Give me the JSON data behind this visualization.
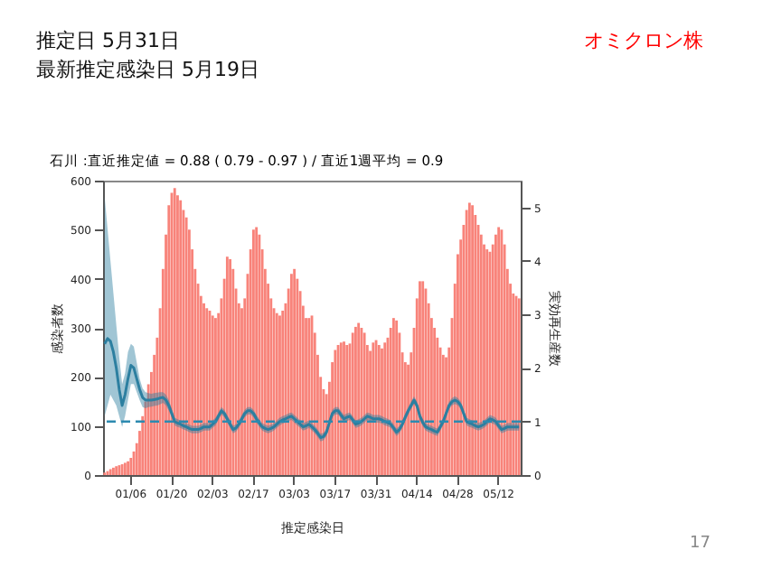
{
  "chart_data": {
    "type": "bar",
    "title": "石川 :直近推定値 = 0.88 ( 0.79 - 0.97 ) / 直近1週平均 = 0.9",
    "annotations": [
      "推定日  5月31日",
      "最新推定感染日  5月19日",
      "オミクロン株",
      "17"
    ],
    "xlabel": "推定感染日",
    "ylabel": "感染者数",
    "y2label": "実効再生産数",
    "categories": [
      null,
      null,
      null,
      null,
      null,
      null,
      null,
      null,
      null,
      "01/06",
      null,
      null,
      null,
      null,
      null,
      null,
      null,
      null,
      null,
      null,
      null,
      null,
      null,
      "01/20",
      null,
      null,
      null,
      null,
      null,
      null,
      null,
      null,
      null,
      null,
      null,
      null,
      null,
      "02/03",
      null,
      null,
      null,
      null,
      null,
      null,
      null,
      null,
      null,
      null,
      null,
      null,
      null,
      "02/17",
      null,
      null,
      null,
      null,
      null,
      null,
      null,
      null,
      null,
      null,
      null,
      null,
      null,
      "03/03",
      null,
      null,
      null,
      null,
      null,
      null,
      null,
      null,
      null,
      null,
      null,
      null,
      null,
      "03/17",
      null,
      null,
      null,
      null,
      null,
      null,
      null,
      null,
      null,
      null,
      null,
      null,
      null,
      "03/31",
      null,
      null,
      null,
      null,
      null,
      null,
      null,
      null,
      null,
      null,
      null,
      null,
      null,
      "04/14",
      null,
      null,
      null,
      null,
      null,
      null,
      null,
      null,
      null,
      null,
      null,
      null,
      null,
      "04/28",
      null,
      null,
      null,
      null,
      null,
      null,
      null,
      null,
      null,
      null,
      null,
      null,
      null,
      "05/12",
      null,
      null,
      null,
      null,
      null,
      null,
      null
    ],
    "ylim": [
      0,
      600
    ],
    "yticks": [
      0,
      100,
      200,
      300,
      400,
      500,
      600
    ],
    "y2lim": [
      0,
      5.5
    ],
    "y2ticks": [
      0,
      1,
      2,
      3,
      4,
      5
    ],
    "series": [
      {
        "color": "#f8837a",
        "values": [
          5,
          8,
          12,
          15,
          18,
          20,
          22,
          25,
          28,
          35,
          48,
          65,
          90,
          120,
          150,
          185,
          210,
          245,
          280,
          340,
          420,
          490,
          550,
          575,
          585,
          570,
          560,
          540,
          525,
          500,
          460,
          420,
          390,
          365,
          350,
          340,
          335,
          325,
          320,
          330,
          360,
          400,
          445,
          440,
          420,
          380,
          350,
          340,
          360,
          410,
          460,
          500,
          505,
          490,
          460,
          420,
          390,
          360,
          340,
          330,
          325,
          335,
          350,
          380,
          410,
          420,
          400,
          375,
          345,
          320,
          320,
          325,
          290,
          245,
          200,
          175,
          165,
          190,
          230,
          255,
          265,
          270,
          272,
          265,
          268,
          290,
          302,
          310,
          300,
          290,
          265,
          253,
          270,
          275,
          265,
          258,
          270,
          280,
          300,
          320,
          315,
          290,
          250,
          230,
          225,
          250,
          300,
          360,
          395,
          395,
          380,
          350,
          320,
          300,
          280,
          260,
          245,
          240,
          260,
          320,
          390,
          450,
          480,
          510,
          540,
          555,
          550,
          530,
          510,
          490,
          470,
          460,
          455,
          470,
          490,
          505,
          500,
          470,
          420,
          390,
          370,
          365,
          360
        ]
      },
      {
        "type": "line",
        "axis": "y2",
        "color": "#2c7fa0",
        "values": [
          2.45,
          2.55,
          2.5,
          2.3,
          2.0,
          1.6,
          1.3,
          1.5,
          1.8,
          2.05,
          2.0,
          1.8,
          1.6,
          1.45,
          1.4,
          1.4,
          1.4,
          1.41,
          1.42,
          1.44,
          1.45,
          1.4,
          1.3,
          1.15,
          1.0,
          0.97,
          0.95,
          0.92,
          0.9,
          0.87,
          0.85,
          0.85,
          0.85,
          0.87,
          0.9,
          0.9,
          0.9,
          0.95,
          1.0,
          1.1,
          1.2,
          1.15,
          1.05,
          0.95,
          0.85,
          0.88,
          0.95,
          1.05,
          1.15,
          1.2,
          1.2,
          1.15,
          1.05,
          0.97,
          0.9,
          0.87,
          0.85,
          0.87,
          0.9,
          0.95,
          1.0,
          1.03,
          1.05,
          1.08,
          1.1,
          1.05,
          1.0,
          0.95,
          0.9,
          0.92,
          0.95,
          0.9,
          0.85,
          0.78,
          0.7,
          0.72,
          0.8,
          0.98,
          1.15,
          1.2,
          1.2,
          1.12,
          1.05,
          1.08,
          1.1,
          1.03,
          0.95,
          0.97,
          1.0,
          1.05,
          1.1,
          1.08,
          1.05,
          1.05,
          1.05,
          1.03,
          1.0,
          0.98,
          0.95,
          0.88,
          0.8,
          0.85,
          0.95,
          1.08,
          1.2,
          1.3,
          1.4,
          1.3,
          1.1,
          0.98,
          0.9,
          0.87,
          0.85,
          0.82,
          0.8,
          0.9,
          1.0,
          1.15,
          1.3,
          1.37,
          1.4,
          1.37,
          1.3,
          1.15,
          1.0,
          0.97,
          0.95,
          0.92,
          0.9,
          0.92,
          0.95,
          1.0,
          1.05,
          1.03,
          1.0,
          0.92,
          0.85,
          0.87,
          0.9,
          0.9,
          0.9,
          0.9,
          0.9
        ],
        "lower": [
          1.1,
          1.3,
          1.5,
          1.4,
          1.3,
          1.1,
          0.9,
          1.1,
          1.4,
          1.7,
          1.7,
          1.55,
          1.4,
          1.27,
          1.25,
          1.27,
          1.28,
          1.29,
          1.3,
          1.32,
          1.35,
          1.3,
          1.2,
          1.07,
          0.93,
          0.9,
          0.88,
          0.85,
          0.83,
          0.8,
          0.78,
          0.78,
          0.78,
          0.8,
          0.83,
          0.83,
          0.83,
          0.88,
          0.93,
          1.03,
          1.13,
          1.08,
          0.98,
          0.88,
          0.78,
          0.81,
          0.88,
          0.98,
          1.08,
          1.13,
          1.13,
          1.08,
          0.98,
          0.9,
          0.83,
          0.8,
          0.78,
          0.8,
          0.83,
          0.88,
          0.93,
          0.96,
          0.98,
          1.01,
          1.03,
          0.98,
          0.93,
          0.88,
          0.83,
          0.85,
          0.88,
          0.83,
          0.78,
          0.71,
          0.63,
          0.65,
          0.73,
          0.91,
          1.08,
          1.13,
          1.13,
          1.05,
          0.98,
          1.01,
          1.03,
          0.96,
          0.88,
          0.9,
          0.93,
          0.98,
          1.03,
          1.01,
          0.98,
          0.98,
          0.98,
          0.96,
          0.93,
          0.91,
          0.88,
          0.81,
          0.73,
          0.78,
          0.88,
          1.01,
          1.13,
          1.23,
          1.33,
          1.23,
          1.03,
          0.91,
          0.83,
          0.8,
          0.78,
          0.75,
          0.73,
          0.83,
          0.93,
          1.08,
          1.23,
          1.3,
          1.33,
          1.3,
          1.23,
          1.08,
          0.93,
          0.9,
          0.88,
          0.85,
          0.83,
          0.85,
          0.88,
          0.93,
          0.98,
          0.96,
          0.93,
          0.85,
          0.78,
          0.8,
          0.83,
          0.83,
          0.83,
          0.83,
          0.83
        ],
        "upper": [
          5.2,
          4.6,
          4.0,
          3.4,
          2.8,
          2.2,
          1.7,
          1.9,
          2.3,
          2.45,
          2.4,
          2.1,
          1.8,
          1.62,
          1.55,
          1.53,
          1.52,
          1.53,
          1.54,
          1.55,
          1.55,
          1.5,
          1.4,
          1.23,
          1.07,
          1.04,
          1.02,
          0.99,
          0.97,
          0.94,
          0.92,
          0.92,
          0.92,
          0.94,
          0.97,
          0.97,
          0.97,
          1.02,
          1.07,
          1.17,
          1.27,
          1.22,
          1.12,
          1.02,
          0.92,
          0.95,
          1.02,
          1.12,
          1.22,
          1.27,
          1.27,
          1.22,
          1.12,
          1.04,
          0.97,
          0.94,
          0.92,
          0.94,
          0.97,
          1.02,
          1.07,
          1.1,
          1.12,
          1.15,
          1.17,
          1.12,
          1.07,
          1.02,
          0.97,
          0.99,
          1.02,
          0.97,
          0.92,
          0.85,
          0.77,
          0.79,
          0.87,
          1.05,
          1.22,
          1.27,
          1.27,
          1.19,
          1.12,
          1.15,
          1.17,
          1.1,
          1.02,
          1.04,
          1.07,
          1.12,
          1.17,
          1.15,
          1.12,
          1.12,
          1.12,
          1.1,
          1.07,
          1.05,
          1.02,
          0.95,
          0.87,
          0.92,
          1.02,
          1.15,
          1.27,
          1.37,
          1.47,
          1.37,
          1.17,
          1.05,
          0.97,
          0.94,
          0.92,
          0.89,
          0.87,
          0.97,
          1.07,
          1.22,
          1.37,
          1.44,
          1.47,
          1.44,
          1.37,
          1.22,
          1.07,
          1.04,
          1.02,
          0.99,
          0.97,
          0.99,
          1.02,
          1.07,
          1.12,
          1.1,
          1.07,
          0.99,
          0.92,
          0.94,
          0.97,
          0.97,
          0.97,
          0.97,
          0.97
        ]
      }
    ],
    "ref_lines": [
      {
        "axis": "y2",
        "value": 1,
        "color": "#2c8ab0",
        "line_style": "dashed"
      }
    ]
  }
}
